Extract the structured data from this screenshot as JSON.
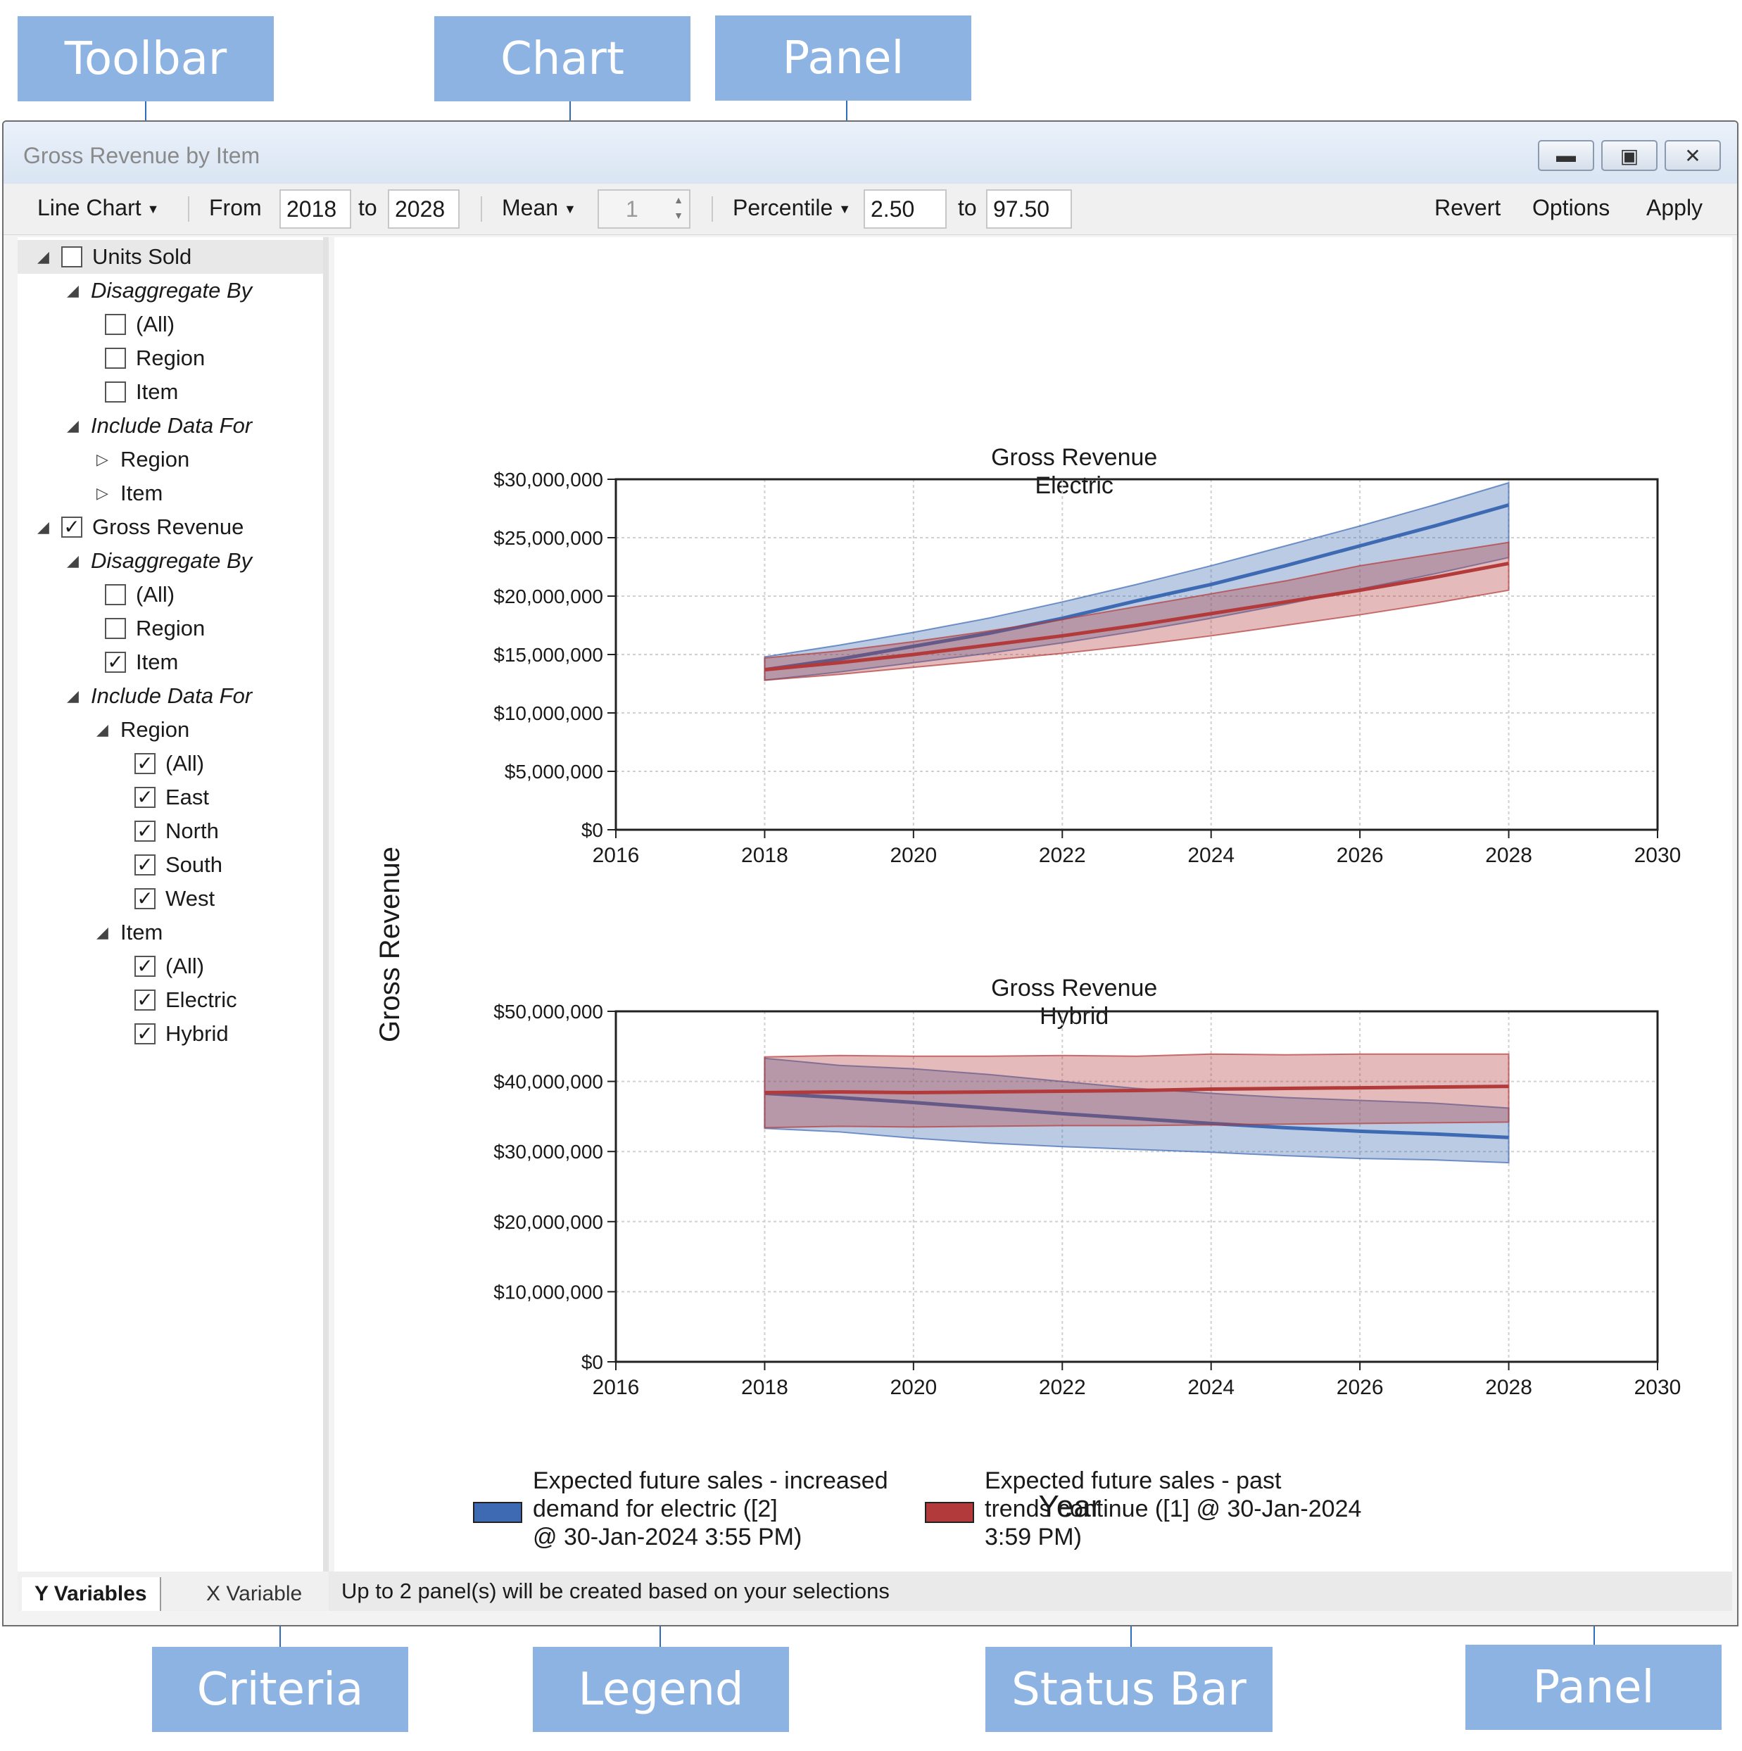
{
  "callouts": {
    "toolbar": "Toolbar",
    "chart": "Chart",
    "panel_top": "Panel",
    "criteria": "Criteria",
    "legend": "Legend",
    "status_bar": "Status Bar",
    "panel_bottom": "Panel"
  },
  "window": {
    "title": "Gross Revenue by Item",
    "minimize_icon": "minimize-icon",
    "restore_icon": "restore-icon",
    "close_icon": "close-icon"
  },
  "toolbar": {
    "chart_type": "Line Chart",
    "from_label": "From",
    "from_value": "2018",
    "to_label": "to",
    "to_value": "2028",
    "stat_label": "Mean",
    "stat_value": "1",
    "percentile_label": "Percentile",
    "pct_low": "2.50",
    "pct_to_label": "to",
    "pct_high": "97.50",
    "revert": "Revert",
    "options": "Options",
    "apply": "Apply"
  },
  "criteria": {
    "units_sold": "Units Sold",
    "disaggregate_by": "Disaggregate By",
    "all": "(All)",
    "region": "Region",
    "item": "Item",
    "include_data_for": "Include Data For",
    "gross_revenue": "Gross Revenue",
    "east": "East",
    "north": "North",
    "south": "South",
    "west": "West",
    "electric": "Electric",
    "hybrid": "Hybrid"
  },
  "tabs": {
    "y_variables": "Y Variables",
    "x_variable": "X Variable"
  },
  "status": {
    "text": "Up to 2 panel(s) will be created based on your selections"
  },
  "chart_labels": {
    "ylabel": "Gross Revenue",
    "xlabel": "Year",
    "legend_blue": [
      "Expected future sales - increased",
      "demand for electric ([2]",
      "@ 30-Jan-2024 3:55 PM)"
    ],
    "legend_red": [
      "Expected future sales - past",
      "trends continue ([1] @ 30-Jan-2024",
      "3:59 PM)"
    ]
  },
  "colors": {
    "blue": "#3d6ab3",
    "red": "#b33a3a",
    "callout": "#8db3e2"
  },
  "chart_data": [
    {
      "type": "line",
      "title": "Gross Revenue",
      "subtitle": "Electric",
      "xlim": [
        2016,
        2030
      ],
      "xticks": [
        2016,
        2018,
        2020,
        2022,
        2024,
        2026,
        2028,
        2030
      ],
      "ylim": [
        0,
        30000000
      ],
      "yticks": [
        "$0",
        "$5,000,000",
        "$10,000,000",
        "$15,000,000",
        "$20,000,000",
        "$25,000,000",
        "$30,000,000"
      ],
      "grid": true,
      "x": [
        2018,
        2019,
        2020,
        2021,
        2022,
        2023,
        2024,
        2025,
        2026,
        2027,
        2028
      ],
      "series": [
        {
          "color": "#3d6ab3",
          "mean": [
            13700000,
            14600000,
            15700000,
            16800000,
            18100000,
            19600000,
            21000000,
            22600000,
            24300000,
            26000000,
            27800000
          ],
          "low": [
            12800000,
            13500000,
            14300000,
            15100000,
            16000000,
            17000000,
            18100000,
            19300000,
            20600000,
            21900000,
            23300000
          ],
          "high": [
            14800000,
            15800000,
            16900000,
            18100000,
            19500000,
            21000000,
            22600000,
            24300000,
            26000000,
            27800000,
            29700000
          ]
        },
        {
          "color": "#b33a3a",
          "mean": [
            13700000,
            14300000,
            15000000,
            15800000,
            16600000,
            17500000,
            18500000,
            19500000,
            20500000,
            21600000,
            22800000
          ],
          "low": [
            12800000,
            13300000,
            13900000,
            14500000,
            15100000,
            15800000,
            16600000,
            17500000,
            18400000,
            19400000,
            20500000
          ],
          "high": [
            14700000,
            15300000,
            16100000,
            17000000,
            18000000,
            19100000,
            20200000,
            21300000,
            22600000,
            23600000,
            24600000
          ]
        }
      ]
    },
    {
      "type": "line",
      "title": "Gross Revenue",
      "subtitle": "Hybrid",
      "xlim": [
        2016,
        2030
      ],
      "xticks": [
        2016,
        2018,
        2020,
        2022,
        2024,
        2026,
        2028,
        2030
      ],
      "ylim": [
        0,
        50000000
      ],
      "yticks": [
        "$0",
        "$10,000,000",
        "$20,000,000",
        "$30,000,000",
        "$40,000,000",
        "$50,000,000"
      ],
      "grid": true,
      "x": [
        2018,
        2019,
        2020,
        2021,
        2022,
        2023,
        2024,
        2025,
        2026,
        2027,
        2028
      ],
      "series": [
        {
          "color": "#3d6ab3",
          "mean": [
            38300000,
            37700000,
            37000000,
            36200000,
            35400000,
            34700000,
            34000000,
            33400000,
            32900000,
            32500000,
            32000000
          ],
          "low": [
            33300000,
            32800000,
            31900000,
            31200000,
            30700000,
            30300000,
            29900000,
            29400000,
            29000000,
            28800000,
            28400000
          ],
          "high": [
            43300000,
            42300000,
            41800000,
            41000000,
            40000000,
            39000000,
            38300000,
            37700000,
            37300000,
            36900000,
            36200000
          ]
        },
        {
          "color": "#b33a3a",
          "mean": [
            38400000,
            38500000,
            38400000,
            38500000,
            38600000,
            38700000,
            38900000,
            39000000,
            39100000,
            39200000,
            39300000
          ],
          "low": [
            33400000,
            33600000,
            33500000,
            33600000,
            33700000,
            33700000,
            33800000,
            33900000,
            34000000,
            34100000,
            34200000
          ],
          "high": [
            43500000,
            43700000,
            43600000,
            43600000,
            43700000,
            43600000,
            43900000,
            43800000,
            43900000,
            43900000,
            43900000
          ]
        }
      ]
    }
  ]
}
